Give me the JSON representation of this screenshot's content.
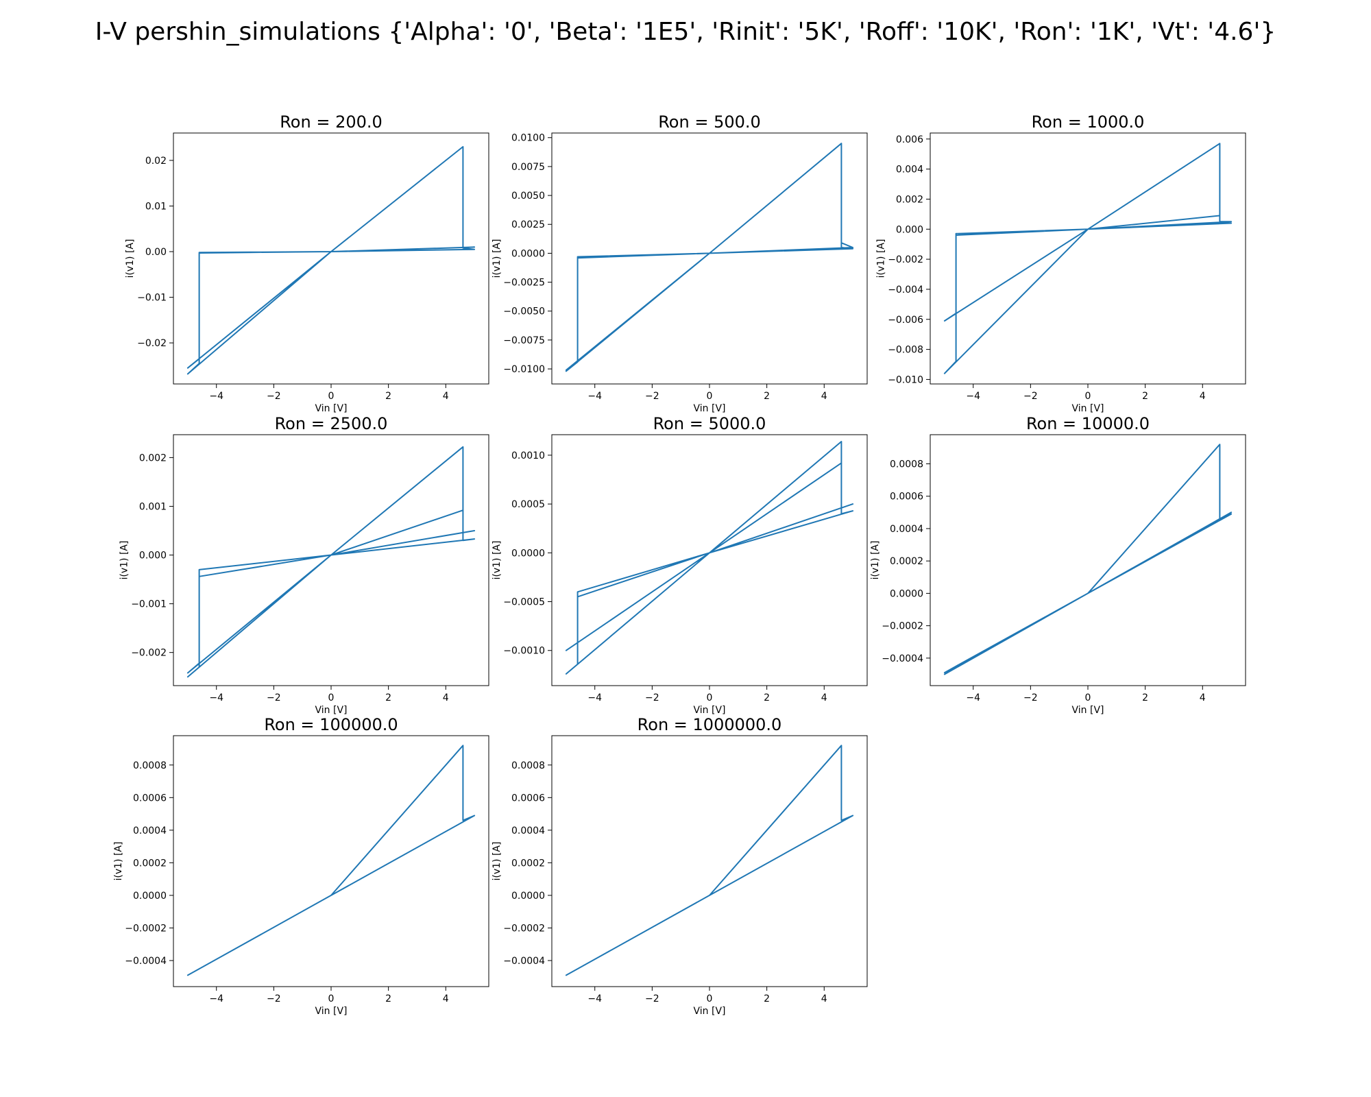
{
  "title": "I-V pershin_simulations {'Alpha': '0', 'Beta': '1E5', 'Rinit': '5K', 'Roff': '10K', 'Ron': '1K', 'Vt': '4.6'}",
  "colors": {
    "series": "#1f77b4"
  },
  "chart_data": [
    {
      "type": "line",
      "title": "Ron = 200.0",
      "xlabel": "Vin [V]",
      "ylabel": "i(v1) [A]",
      "xlim": [
        -5.5,
        5.5
      ],
      "ylim": [
        -0.029,
        0.026
      ],
      "xticks": [
        -4,
        -2,
        0,
        2,
        4
      ],
      "xtick_labels": [
        "−4",
        "−2",
        "0",
        "2",
        "4"
      ],
      "yticks": [
        -0.02,
        -0.01,
        0.0,
        0.01,
        0.02
      ],
      "ytick_labels": [
        "−0.02",
        "−0.01",
        "0.00",
        "0.01",
        "0.02"
      ],
      "grid": false,
      "series": [
        {
          "x": [
            0,
            4.6,
            4.6,
            5,
            0,
            -4.6,
            -4.6,
            -5,
            0,
            4.6,
            4.6,
            5,
            0,
            -4.6,
            -4.6,
            -5,
            0
          ],
          "y": [
            0,
            0.023,
            0.0009,
            0.001,
            0,
            -0.0003,
            -0.0235,
            -0.0255,
            0,
            0.023,
            0.0008,
            0.0005,
            0,
            -0.0002,
            -0.0245,
            -0.0268,
            0
          ]
        }
      ]
    },
    {
      "type": "line",
      "title": "Ron = 500.0",
      "xlabel": "Vin [V]",
      "ylabel": "i(v1) [A]",
      "xlim": [
        -5.5,
        5.5
      ],
      "ylim": [
        -0.0113,
        0.0104
      ],
      "xticks": [
        -4,
        -2,
        0,
        2,
        4
      ],
      "xtick_labels": [
        "−4",
        "−2",
        "0",
        "2",
        "4"
      ],
      "yticks": [
        -0.01,
        -0.0075,
        -0.005,
        -0.0025,
        0.0,
        0.0025,
        0.005,
        0.0075,
        0.01
      ],
      "ytick_labels": [
        "−0.0100",
        "−0.0075",
        "−0.0050",
        "−0.0025",
        "0.0000",
        "0.0025",
        "0.0050",
        "0.0075",
        "0.0100"
      ],
      "grid": false,
      "series": [
        {
          "x": [
            0,
            4.6,
            4.6,
            5,
            0,
            -4.6,
            -4.6,
            -5,
            0,
            4.6,
            4.6,
            5,
            0,
            -4.6,
            -4.6,
            -5,
            0
          ],
          "y": [
            0,
            0.0095,
            0.0009,
            0.0005,
            0,
            -0.0003,
            -0.0093,
            -0.0101,
            0,
            0.0095,
            0.0005,
            0.0004,
            0,
            -0.0004,
            -0.0094,
            -0.0102,
            0
          ]
        }
      ]
    },
    {
      "type": "line",
      "title": "Ron = 1000.0",
      "xlabel": "Vin [V]",
      "ylabel": "i(v1) [A]",
      "xlim": [
        -5.5,
        5.5
      ],
      "ylim": [
        -0.0103,
        0.0064
      ],
      "xticks": [
        -4,
        -2,
        0,
        2,
        4
      ],
      "xtick_labels": [
        "−4",
        "−2",
        "0",
        "2",
        "4"
      ],
      "yticks": [
        -0.01,
        -0.008,
        -0.006,
        -0.004,
        -0.002,
        0.0,
        0.002,
        0.004,
        0.006
      ],
      "ytick_labels": [
        "−0.010",
        "−0.008",
        "−0.006",
        "−0.004",
        "−0.002",
        "0.000",
        "0.002",
        "0.004",
        "0.006"
      ],
      "grid": false,
      "series": [
        {
          "x": [
            0,
            4.6,
            4.6,
            5,
            0,
            -4.6,
            -4.6,
            -5,
            0,
            4.6,
            4.6,
            5,
            0,
            -4.6,
            -4.6,
            -5,
            0
          ],
          "y": [
            0,
            0.0057,
            0.0005,
            0.0005,
            0,
            -0.0003,
            -0.0056,
            -0.0061,
            0,
            0.0009,
            0.0004,
            0.0004,
            0,
            -0.0004,
            -0.0088,
            -0.0096,
            0
          ]
        }
      ]
    },
    {
      "type": "line",
      "title": "Ron = 2500.0",
      "xlabel": "Vin [V]",
      "ylabel": "i(v1) [A]",
      "xlim": [
        -5.5,
        5.5
      ],
      "ylim": [
        -0.00268,
        0.00247
      ],
      "xticks": [
        -4,
        -2,
        0,
        2,
        4
      ],
      "xtick_labels": [
        "−4",
        "−2",
        "0",
        "2",
        "4"
      ],
      "yticks": [
        -0.002,
        -0.001,
        0.0,
        0.001,
        0.002
      ],
      "ytick_labels": [
        "−0.002",
        "−0.001",
        "0.000",
        "0.001",
        "0.002"
      ],
      "grid": false,
      "series": [
        {
          "x": [
            0,
            4.6,
            4.6,
            5,
            0,
            -4.6,
            -4.6,
            -5,
            0,
            4.6,
            4.6,
            5,
            0,
            -4.6,
            -4.6,
            -5,
            0
          ],
          "y": [
            0,
            0.00222,
            0.0003,
            0.00033,
            0,
            -0.0003,
            -0.00222,
            -0.00242,
            0,
            0.00092,
            0.00046,
            0.0005,
            0,
            -0.00044,
            -0.0023,
            -0.0025,
            0
          ]
        }
      ]
    },
    {
      "type": "line",
      "title": "Ron = 5000.0",
      "xlabel": "Vin [V]",
      "ylabel": "i(v1) [A]",
      "xlim": [
        -5.5,
        5.5
      ],
      "ylim": [
        -0.00136,
        0.00121
      ],
      "xticks": [
        -4,
        -2,
        0,
        2,
        4
      ],
      "xtick_labels": [
        "−4",
        "−2",
        "0",
        "2",
        "4"
      ],
      "yticks": [
        -0.001,
        -0.0005,
        0.0,
        0.0005,
        0.001
      ],
      "ytick_labels": [
        "−0.0010",
        "−0.0005",
        "0.0000",
        "0.0005",
        "0.0010"
      ],
      "grid": false,
      "series": [
        {
          "x": [
            0,
            4.6,
            4.6,
            5,
            0,
            -4.6,
            -4.6,
            -5,
            0,
            4.6,
            4.6,
            5,
            0,
            -4.6,
            -4.6,
            -5,
            0
          ],
          "y": [
            0,
            0.00114,
            0.00046,
            0.0005,
            0,
            -0.0004,
            -0.00092,
            -0.001,
            0,
            0.00092,
            0.0004,
            0.00043,
            0,
            -0.00045,
            -0.00114,
            -0.00124,
            0
          ]
        }
      ]
    },
    {
      "type": "line",
      "title": "Ron = 10000.0",
      "xlabel": "Vin [V]",
      "ylabel": "i(v1) [A]",
      "xlim": [
        -5.5,
        5.5
      ],
      "ylim": [
        -0.00057,
        0.00098
      ],
      "xticks": [
        -4,
        -2,
        0,
        2,
        4
      ],
      "xtick_labels": [
        "−4",
        "−2",
        "0",
        "2",
        "4"
      ],
      "yticks": [
        -0.0004,
        -0.0002,
        0.0,
        0.0002,
        0.0004,
        0.0006,
        0.0008
      ],
      "ytick_labels": [
        "−0.0004",
        "−0.0002",
        "0.0000",
        "0.0002",
        "0.0004",
        "0.0006",
        "0.0008"
      ],
      "grid": false,
      "series": [
        {
          "x": [
            0,
            4.6,
            4.6,
            5,
            0,
            -4.6,
            -5,
            0,
            4.6,
            5,
            0,
            -4.6,
            -5,
            0
          ],
          "y": [
            0,
            0.00092,
            0.00046,
            0.0005,
            0,
            -0.00046,
            -0.0005,
            0,
            0.00046,
            0.00049,
            0,
            -0.00045,
            -0.00049,
            0
          ]
        }
      ]
    },
    {
      "type": "line",
      "title": "Ron = 100000.0",
      "xlabel": "Vin [V]",
      "ylabel": "i(v1) [A]",
      "xlim": [
        -5.5,
        5.5
      ],
      "ylim": [
        -0.00056,
        0.00098
      ],
      "xticks": [
        -4,
        -2,
        0,
        2,
        4
      ],
      "xtick_labels": [
        "−4",
        "−2",
        "0",
        "2",
        "4"
      ],
      "yticks": [
        -0.0004,
        -0.0002,
        0.0,
        0.0002,
        0.0004,
        0.0006,
        0.0008
      ],
      "ytick_labels": [
        "−0.0004",
        "−0.0002",
        "0.0000",
        "0.0002",
        "0.0004",
        "0.0006",
        "0.0008"
      ],
      "grid": false,
      "series": [
        {
          "x": [
            0,
            4.6,
            4.6,
            5,
            0,
            -5,
            0,
            5,
            0,
            -5,
            0
          ],
          "y": [
            0,
            0.00092,
            0.00046,
            0.00049,
            0,
            -0.00049,
            0,
            0.00049,
            0,
            -0.00049,
            0
          ]
        }
      ]
    },
    {
      "type": "line",
      "title": "Ron = 1000000.0",
      "xlabel": "Vin [V]",
      "ylabel": "i(v1) [A]",
      "xlim": [
        -5.5,
        5.5
      ],
      "ylim": [
        -0.00056,
        0.00098
      ],
      "xticks": [
        -4,
        -2,
        0,
        2,
        4
      ],
      "xtick_labels": [
        "−4",
        "−2",
        "0",
        "2",
        "4"
      ],
      "yticks": [
        -0.0004,
        -0.0002,
        0.0,
        0.0002,
        0.0004,
        0.0006,
        0.0008
      ],
      "ytick_labels": [
        "−0.0004",
        "−0.0002",
        "0.0000",
        "0.0002",
        "0.0004",
        "0.0006",
        "0.0008"
      ],
      "grid": false,
      "series": [
        {
          "x": [
            0,
            4.6,
            4.6,
            5,
            0,
            -5,
            0,
            5,
            0,
            -5,
            0
          ],
          "y": [
            0,
            0.00092,
            0.00046,
            0.00049,
            0,
            -0.00049,
            0,
            0.00049,
            0,
            -0.00049,
            0
          ]
        }
      ]
    }
  ]
}
